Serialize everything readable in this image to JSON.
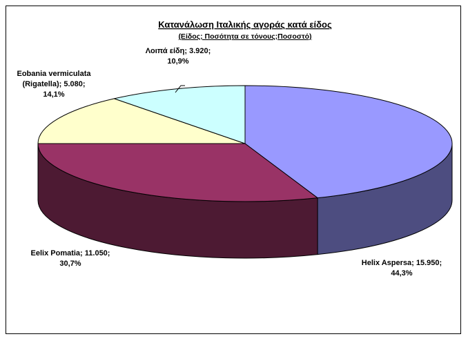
{
  "chart_data": {
    "type": "pie",
    "title": "Κατανάλωση Ιταλικής αγοράς κατά είδος",
    "subtitle": "(Είδος; Ποσότητα σε τόνους;Ποσοστό)",
    "slices": [
      {
        "name": "Helix Aspersa",
        "value": 15950,
        "percent": 44.3,
        "label_lines": [
          "Helix Aspersa; 15.950;",
          "44,3%"
        ],
        "color": "#9999ff",
        "side_color": "#4d4d80"
      },
      {
        "name": "Eelix Pomatia",
        "value": 11050,
        "percent": 30.7,
        "label_lines": [
          "Eelix Pomatia; 11.050;",
          "30,7%"
        ],
        "color": "#993366",
        "side_color": "#4d1a33"
      },
      {
        "name": "Eobania vermiculata (Rigatella)",
        "value": 5080,
        "percent": 14.1,
        "label_lines": [
          "Eobania vermiculata",
          "(Rigatella); 5.080;",
          "14,1%"
        ],
        "color": "#ffffcc",
        "side_color": "#808066"
      },
      {
        "name": "Λοιπά είδη",
        "value": 3920,
        "percent": 10.9,
        "label_lines": [
          "Λοιπά είδη; 3.920;",
          "10,9%"
        ],
        "color": "#ccffff",
        "side_color": "#668080"
      }
    ],
    "start_angle_deg": 0,
    "direction": "clockwise",
    "three_d": true,
    "legend": "none"
  }
}
